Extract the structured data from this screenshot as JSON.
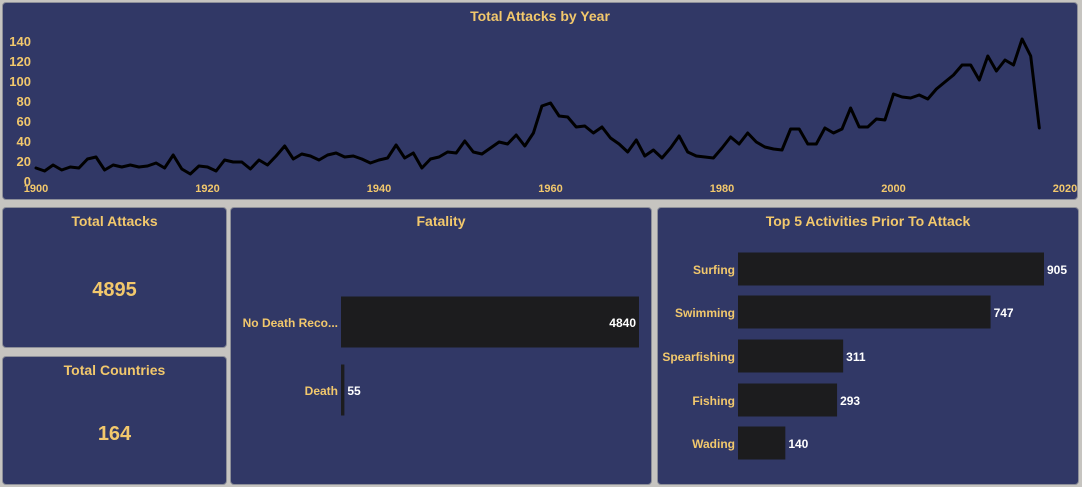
{
  "colors": {
    "panel_bg": "#313866",
    "accent_text": "#f2c86c",
    "bar_fill": "#1c1c1e",
    "line": "#000000",
    "page_bg": "#c6c4c0"
  },
  "kpis": {
    "total_attacks": {
      "label": "Total Attacks",
      "value": "4895"
    },
    "total_countries": {
      "label": "Total Countries",
      "value": "164"
    }
  },
  "chart_data": [
    {
      "type": "line",
      "title": "Total Attacks by Year",
      "xlabel": "",
      "ylabel": "",
      "xlim": [
        1900,
        2020
      ],
      "ylim": [
        0,
        145
      ],
      "xticks": [
        1900,
        1920,
        1940,
        1960,
        1980,
        2000,
        2020
      ],
      "yticks": [
        0,
        20,
        40,
        60,
        80,
        100,
        120,
        140
      ],
      "grid": false,
      "x": [
        1900,
        1901,
        1902,
        1903,
        1904,
        1905,
        1906,
        1907,
        1908,
        1909,
        1910,
        1911,
        1912,
        1913,
        1914,
        1915,
        1916,
        1917,
        1918,
        1919,
        1920,
        1921,
        1922,
        1923,
        1924,
        1925,
        1926,
        1927,
        1928,
        1929,
        1930,
        1931,
        1932,
        1933,
        1934,
        1935,
        1936,
        1937,
        1938,
        1939,
        1940,
        1941,
        1942,
        1943,
        1944,
        1945,
        1946,
        1947,
        1948,
        1949,
        1950,
        1951,
        1952,
        1953,
        1954,
        1955,
        1956,
        1957,
        1958,
        1959,
        1960,
        1961,
        1962,
        1963,
        1964,
        1965,
        1966,
        1967,
        1968,
        1969,
        1970,
        1971,
        1972,
        1973,
        1974,
        1975,
        1976,
        1977,
        1978,
        1979,
        1980,
        1981,
        1982,
        1983,
        1984,
        1985,
        1986,
        1987,
        1988,
        1989,
        1990,
        1991,
        1992,
        1993,
        1994,
        1995,
        1996,
        1997,
        1998,
        1999,
        2000,
        2001,
        2002,
        2003,
        2004,
        2005,
        2006,
        2007,
        2008,
        2009,
        2010,
        2011,
        2012,
        2013,
        2014,
        2015,
        2016,
        2017
      ],
      "values": [
        13,
        10,
        16,
        11,
        14,
        13,
        22,
        24,
        11,
        16,
        14,
        16,
        14,
        15,
        18,
        13,
        26,
        12,
        7,
        15,
        14,
        10,
        21,
        19,
        19,
        12,
        21,
        16,
        25,
        35,
        22,
        27,
        25,
        21,
        26,
        28,
        24,
        25,
        22,
        18,
        21,
        23,
        36,
        23,
        28,
        13,
        22,
        24,
        29,
        28,
        40,
        29,
        27,
        33,
        39,
        37,
        46,
        35,
        48,
        75,
        78,
        65,
        64,
        54,
        55,
        48,
        54,
        43,
        37,
        29,
        41,
        25,
        31,
        23,
        33,
        45,
        29,
        25,
        24,
        23,
        33,
        44,
        37,
        48,
        39,
        34,
        32,
        31,
        52,
        52,
        37,
        37,
        53,
        48,
        52,
        73,
        54,
        54,
        62,
        61,
        87,
        84,
        83,
        86,
        82,
        92,
        99,
        106,
        116,
        116,
        101,
        125,
        110,
        121,
        116,
        142,
        125,
        53
      ]
    },
    {
      "type": "bar",
      "title": "Fatality",
      "categories": [
        "No Death Reco...",
        "Death"
      ],
      "values": [
        4840,
        55
      ]
    },
    {
      "type": "bar",
      "title": "Top 5 Activities Prior To Attack",
      "categories": [
        "Surfing",
        "Swimming",
        "Spearfishing",
        "Fishing",
        "Wading"
      ],
      "values": [
        905,
        747,
        311,
        293,
        140
      ]
    }
  ]
}
